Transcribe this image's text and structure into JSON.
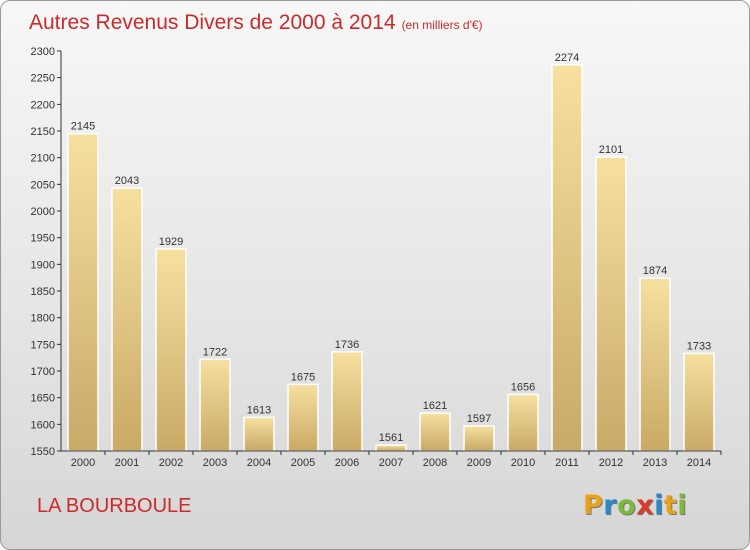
{
  "header": {
    "title": "Autres Revenus Divers de 2000 à 2014",
    "unit": "(en milliers d'€)"
  },
  "footer": {
    "city": "LA BOURBOULE"
  },
  "logo": {
    "text": "Proxiti",
    "letters": [
      {
        "ch": "P",
        "color": "#e8a21a"
      },
      {
        "ch": "r",
        "color": "#2b87c8"
      },
      {
        "ch": "o",
        "color": "#7cb83a"
      },
      {
        "ch": "x",
        "color": "#d93c2a"
      },
      {
        "ch": "i",
        "color": "#2b87c8"
      },
      {
        "ch": "t",
        "color": "#e8a21a"
      },
      {
        "ch": "i",
        "color": "#7cb83a"
      }
    ]
  },
  "colors": {
    "title": "#cc2a2a",
    "bar_light": "#f6e0a0",
    "bar_dark": "#c9a966",
    "axis": "#333333"
  },
  "chart_data": {
    "type": "bar",
    "title": "Autres Revenus Divers de 2000 à 2014",
    "subtitle": "(en milliers d'€)",
    "xlabel": "",
    "ylabel": "",
    "categories": [
      "2000",
      "2001",
      "2002",
      "2003",
      "2004",
      "2005",
      "2006",
      "2007",
      "2008",
      "2009",
      "2010",
      "2011",
      "2012",
      "2013",
      "2014"
    ],
    "values": [
      2145,
      2043,
      1929,
      1722,
      1613,
      1675,
      1736,
      1561,
      1621,
      1597,
      1656,
      2274,
      2101,
      1874,
      1733
    ],
    "ylim": [
      1550,
      2300
    ],
    "yticks": [
      1550,
      1600,
      1650,
      1700,
      1750,
      1800,
      1850,
      1900,
      1950,
      2000,
      2050,
      2100,
      2150,
      2200,
      2250,
      2300
    ],
    "grid": false,
    "legend": "none",
    "data_labels": true
  }
}
